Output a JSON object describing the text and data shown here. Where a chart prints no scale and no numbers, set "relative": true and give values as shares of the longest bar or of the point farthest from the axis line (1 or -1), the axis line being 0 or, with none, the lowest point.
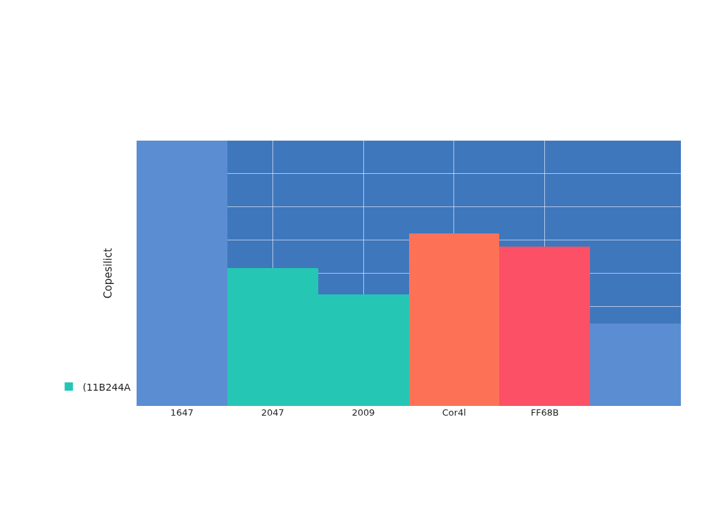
{
  "chart_data": {
    "type": "bar",
    "relative": true,
    "ylabel": "Copesilict",
    "categories": [
      "1647",
      "2047",
      "2009",
      "Cor4l",
      "FF68B",
      null
    ],
    "series": [
      {
        "name": "(11B244A",
        "color": "#26c6b4",
        "colors": [
          "#5b8dd3",
          "#26c6b4",
          "#26c6b4",
          "#fd7257",
          "#fb5065",
          "#5b8dd3"
        ],
        "values": [
          1,
          0.52,
          0.42,
          0.65,
          0.6,
          0.31
        ]
      }
    ],
    "grid": true,
    "legend": "bottom left"
  }
}
